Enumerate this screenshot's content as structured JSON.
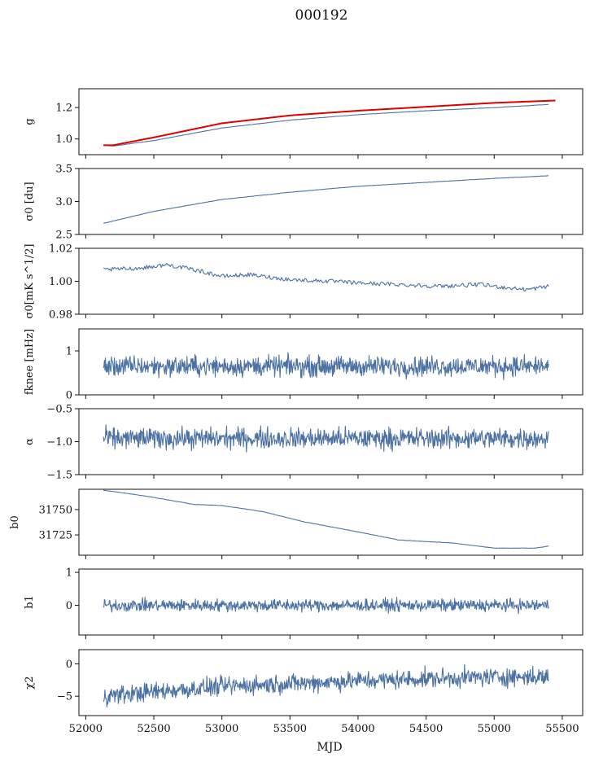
{
  "chart_data": {
    "type": "line",
    "title": "000192",
    "xlabel": "MJD",
    "xlim": [
      51950,
      55650
    ],
    "x_ticks": [
      52000,
      52500,
      53000,
      53500,
      54000,
      54500,
      55000,
      55500
    ],
    "x_ticklabels": [
      "52000",
      "52500",
      "53000",
      "53500",
      "54000",
      "54500",
      "55000",
      "55500"
    ],
    "colors": {
      "series": "#4c72a4",
      "overlay": "#e00000",
      "axes": "#111111"
    },
    "x_range": [
      52130,
      55400
    ],
    "panels": [
      {
        "key": "g",
        "ylabel": "g",
        "ylim": [
          0.9,
          1.32
        ],
        "y_ticks": [
          1.0,
          1.2
        ],
        "y_ticklabels": [
          "1.0",
          "1.2"
        ],
        "series": [
          {
            "kind": "smooth",
            "color": "#4c72a4",
            "x": [
              52130,
              52200,
              52500,
              53000,
              53500,
              54000,
              54500,
              55000,
              55400
            ],
            "y": [
              0.96,
              0.955,
              0.99,
              1.07,
              1.12,
              1.155,
              1.18,
              1.2,
              1.22
            ]
          },
          {
            "kind": "smooth",
            "color": "#e00000",
            "width": 2,
            "x": [
              52130,
              52200,
              52500,
              53000,
              53500,
              54000,
              54500,
              55000,
              55450
            ],
            "y": [
              0.96,
              0.96,
              1.01,
              1.1,
              1.15,
              1.18,
              1.205,
              1.23,
              1.245
            ]
          }
        ]
      },
      {
        "key": "sigma0",
        "ylabel": "σ0 [du]",
        "ylim": [
          2.5,
          3.5
        ],
        "y_ticks": [
          2.5,
          3.0,
          3.5
        ],
        "y_ticklabels": [
          "2.5",
          "3.0",
          "3.5"
        ],
        "series": [
          {
            "kind": "smooth",
            "color": "#4c72a4",
            "x": [
              52130,
              52500,
              53000,
              53500,
              54000,
              54500,
              55000,
              55400
            ],
            "y": [
              2.67,
              2.85,
              3.03,
              3.14,
              3.23,
              3.29,
              3.35,
              3.39
            ]
          }
        ]
      },
      {
        "key": "sigma0_mk",
        "ylabel": "σ0[mK s^1/2]",
        "ylim": [
          0.98,
          1.02
        ],
        "y_ticks": [
          0.98,
          1.0,
          1.02
        ],
        "y_ticklabels": [
          "0.98",
          "1.00",
          "1.02"
        ],
        "series": [
          {
            "kind": "smooth",
            "color": "#4c72a4",
            "x": [
              52130,
              52400,
              52600,
              52800,
              53000,
              53200,
              53500,
              53800,
              54000,
              54300,
              54600,
              54900,
              55100,
              55250,
              55400
            ],
            "y": [
              1.007,
              1.008,
              1.01,
              1.007,
              1.003,
              1.004,
              1.001,
              1.0,
              0.999,
              0.998,
              0.997,
              0.998,
              0.996,
              0.995,
              0.997
            ]
          }
        ]
      },
      {
        "key": "fknee",
        "ylabel": "fknee [mHz]",
        "ylim": [
          0,
          1.5
        ],
        "y_ticks": [
          0,
          1
        ],
        "y_ticklabels": [
          "0",
          "1"
        ],
        "series": [
          {
            "kind": "noise",
            "color": "#4c72a4",
            "x": [
              52130,
              55400
            ],
            "y": [
              0.65,
              0.65
            ]
          }
        ]
      },
      {
        "key": "alpha",
        "ylabel": "α",
        "ylim": [
          -1.5,
          -0.5
        ],
        "y_ticks": [
          -1.5,
          -1.0,
          -0.5
        ],
        "y_ticklabels": [
          "−1.5",
          "−1.0",
          "−0.5"
        ],
        "series": [
          {
            "kind": "noise",
            "color": "#4c72a4",
            "x": [
              52130,
              55400
            ],
            "y": [
              -0.95,
              -0.95
            ]
          }
        ]
      },
      {
        "key": "b0",
        "ylabel": "b0",
        "ylim": [
          31705,
          31770
        ],
        "y_ticks": [
          31725,
          31750
        ],
        "y_ticklabels": [
          "31725",
          "31750"
        ],
        "series": [
          {
            "kind": "smooth",
            "color": "#4c72a4",
            "x": [
              52130,
              52250,
              52500,
              52800,
              53000,
              53300,
              53600,
              54000,
              54300,
              54700,
              55000,
              55300,
              55400
            ],
            "y": [
              31769,
              31767,
              31762,
              31755,
              31754,
              31748,
              31738,
              31728,
              31720,
              31717,
              31712,
              31712,
              31714
            ]
          }
        ]
      },
      {
        "key": "b1",
        "ylabel": "b1",
        "ylim": [
          -0.9,
          1.1
        ],
        "y_ticks": [
          0,
          1
        ],
        "y_ticklabels": [
          "0",
          "1"
        ],
        "series": [
          {
            "kind": "noise",
            "color": "#4c72a4",
            "x": [
              52130,
              55400
            ],
            "y": [
              0.0,
              0.0
            ]
          }
        ]
      },
      {
        "key": "chi2",
        "ylabel": "χ2",
        "ylim": [
          -8,
          2.2
        ],
        "y_ticks": [
          -5,
          0
        ],
        "y_ticklabels": [
          "−5",
          "0"
        ],
        "series": [
          {
            "kind": "noise",
            "color": "#4c72a4",
            "x": [
              52130,
              52500,
              53000,
              54000,
              55000,
              55400
            ],
            "y": [
              -5,
              -4.3,
              -3.5,
              -2.6,
              -2,
              -2
            ]
          }
        ]
      }
    ]
  }
}
